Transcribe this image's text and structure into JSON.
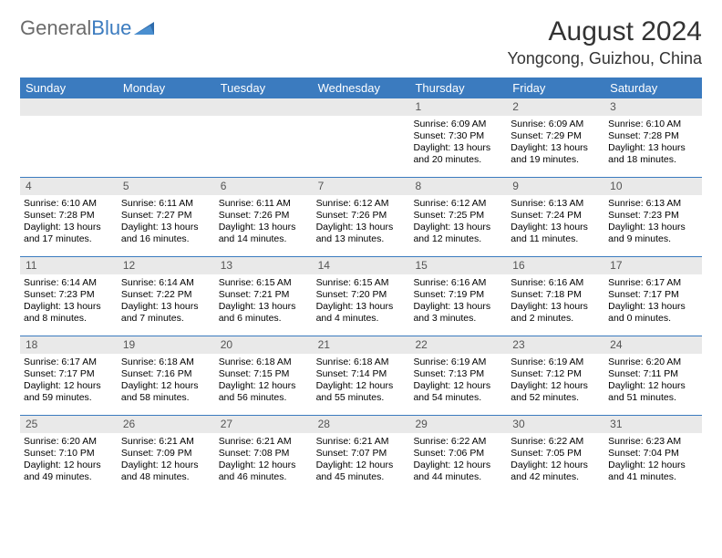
{
  "logo": {
    "text1": "General",
    "text2": "Blue"
  },
  "title": "August 2024",
  "location": "Yongcong, Guizhou, China",
  "colors": {
    "header_bg": "#3b7bbf",
    "header_text": "#ffffff",
    "daynum_bg": "#e9e9e9",
    "border": "#3b7bbf",
    "title_color": "#333333",
    "logo_gray": "#6b6b6b",
    "logo_blue": "#3b7bbf"
  },
  "day_names": [
    "Sunday",
    "Monday",
    "Tuesday",
    "Wednesday",
    "Thursday",
    "Friday",
    "Saturday"
  ],
  "weeks": [
    [
      {
        "day": "",
        "lines": []
      },
      {
        "day": "",
        "lines": []
      },
      {
        "day": "",
        "lines": []
      },
      {
        "day": "",
        "lines": []
      },
      {
        "day": "1",
        "lines": [
          "Sunrise: 6:09 AM",
          "Sunset: 7:30 PM",
          "Daylight: 13 hours and 20 minutes."
        ]
      },
      {
        "day": "2",
        "lines": [
          "Sunrise: 6:09 AM",
          "Sunset: 7:29 PM",
          "Daylight: 13 hours and 19 minutes."
        ]
      },
      {
        "day": "3",
        "lines": [
          "Sunrise: 6:10 AM",
          "Sunset: 7:28 PM",
          "Daylight: 13 hours and 18 minutes."
        ]
      }
    ],
    [
      {
        "day": "4",
        "lines": [
          "Sunrise: 6:10 AM",
          "Sunset: 7:28 PM",
          "Daylight: 13 hours and 17 minutes."
        ]
      },
      {
        "day": "5",
        "lines": [
          "Sunrise: 6:11 AM",
          "Sunset: 7:27 PM",
          "Daylight: 13 hours and 16 minutes."
        ]
      },
      {
        "day": "6",
        "lines": [
          "Sunrise: 6:11 AM",
          "Sunset: 7:26 PM",
          "Daylight: 13 hours and 14 minutes."
        ]
      },
      {
        "day": "7",
        "lines": [
          "Sunrise: 6:12 AM",
          "Sunset: 7:26 PM",
          "Daylight: 13 hours and 13 minutes."
        ]
      },
      {
        "day": "8",
        "lines": [
          "Sunrise: 6:12 AM",
          "Sunset: 7:25 PM",
          "Daylight: 13 hours and 12 minutes."
        ]
      },
      {
        "day": "9",
        "lines": [
          "Sunrise: 6:13 AM",
          "Sunset: 7:24 PM",
          "Daylight: 13 hours and 11 minutes."
        ]
      },
      {
        "day": "10",
        "lines": [
          "Sunrise: 6:13 AM",
          "Sunset: 7:23 PM",
          "Daylight: 13 hours and 9 minutes."
        ]
      }
    ],
    [
      {
        "day": "11",
        "lines": [
          "Sunrise: 6:14 AM",
          "Sunset: 7:23 PM",
          "Daylight: 13 hours and 8 minutes."
        ]
      },
      {
        "day": "12",
        "lines": [
          "Sunrise: 6:14 AM",
          "Sunset: 7:22 PM",
          "Daylight: 13 hours and 7 minutes."
        ]
      },
      {
        "day": "13",
        "lines": [
          "Sunrise: 6:15 AM",
          "Sunset: 7:21 PM",
          "Daylight: 13 hours and 6 minutes."
        ]
      },
      {
        "day": "14",
        "lines": [
          "Sunrise: 6:15 AM",
          "Sunset: 7:20 PM",
          "Daylight: 13 hours and 4 minutes."
        ]
      },
      {
        "day": "15",
        "lines": [
          "Sunrise: 6:16 AM",
          "Sunset: 7:19 PM",
          "Daylight: 13 hours and 3 minutes."
        ]
      },
      {
        "day": "16",
        "lines": [
          "Sunrise: 6:16 AM",
          "Sunset: 7:18 PM",
          "Daylight: 13 hours and 2 minutes."
        ]
      },
      {
        "day": "17",
        "lines": [
          "Sunrise: 6:17 AM",
          "Sunset: 7:17 PM",
          "Daylight: 13 hours and 0 minutes."
        ]
      }
    ],
    [
      {
        "day": "18",
        "lines": [
          "Sunrise: 6:17 AM",
          "Sunset: 7:17 PM",
          "Daylight: 12 hours and 59 minutes."
        ]
      },
      {
        "day": "19",
        "lines": [
          "Sunrise: 6:18 AM",
          "Sunset: 7:16 PM",
          "Daylight: 12 hours and 58 minutes."
        ]
      },
      {
        "day": "20",
        "lines": [
          "Sunrise: 6:18 AM",
          "Sunset: 7:15 PM",
          "Daylight: 12 hours and 56 minutes."
        ]
      },
      {
        "day": "21",
        "lines": [
          "Sunrise: 6:18 AM",
          "Sunset: 7:14 PM",
          "Daylight: 12 hours and 55 minutes."
        ]
      },
      {
        "day": "22",
        "lines": [
          "Sunrise: 6:19 AM",
          "Sunset: 7:13 PM",
          "Daylight: 12 hours and 54 minutes."
        ]
      },
      {
        "day": "23",
        "lines": [
          "Sunrise: 6:19 AM",
          "Sunset: 7:12 PM",
          "Daylight: 12 hours and 52 minutes."
        ]
      },
      {
        "day": "24",
        "lines": [
          "Sunrise: 6:20 AM",
          "Sunset: 7:11 PM",
          "Daylight: 12 hours and 51 minutes."
        ]
      }
    ],
    [
      {
        "day": "25",
        "lines": [
          "Sunrise: 6:20 AM",
          "Sunset: 7:10 PM",
          "Daylight: 12 hours and 49 minutes."
        ]
      },
      {
        "day": "26",
        "lines": [
          "Sunrise: 6:21 AM",
          "Sunset: 7:09 PM",
          "Daylight: 12 hours and 48 minutes."
        ]
      },
      {
        "day": "27",
        "lines": [
          "Sunrise: 6:21 AM",
          "Sunset: 7:08 PM",
          "Daylight: 12 hours and 46 minutes."
        ]
      },
      {
        "day": "28",
        "lines": [
          "Sunrise: 6:21 AM",
          "Sunset: 7:07 PM",
          "Daylight: 12 hours and 45 minutes."
        ]
      },
      {
        "day": "29",
        "lines": [
          "Sunrise: 6:22 AM",
          "Sunset: 7:06 PM",
          "Daylight: 12 hours and 44 minutes."
        ]
      },
      {
        "day": "30",
        "lines": [
          "Sunrise: 6:22 AM",
          "Sunset: 7:05 PM",
          "Daylight: 12 hours and 42 minutes."
        ]
      },
      {
        "day": "31",
        "lines": [
          "Sunrise: 6:23 AM",
          "Sunset: 7:04 PM",
          "Daylight: 12 hours and 41 minutes."
        ]
      }
    ]
  ]
}
